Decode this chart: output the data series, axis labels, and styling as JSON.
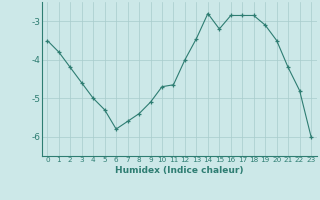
{
  "x": [
    0,
    1,
    2,
    3,
    4,
    5,
    6,
    7,
    8,
    9,
    10,
    11,
    12,
    13,
    14,
    15,
    16,
    17,
    18,
    19,
    20,
    21,
    22,
    23
  ],
  "y": [
    -3.5,
    -3.8,
    -4.2,
    -4.6,
    -5.0,
    -5.3,
    -5.8,
    -5.6,
    -5.4,
    -5.1,
    -4.7,
    -4.65,
    -4.0,
    -3.45,
    -2.8,
    -3.2,
    -2.85,
    -2.85,
    -2.85,
    -3.1,
    -3.5,
    -4.2,
    -4.8,
    -6.0
  ],
  "xlabel": "Humidex (Indice chaleur)",
  "ylim": [
    -6.5,
    -2.5
  ],
  "xlim": [
    -0.5,
    23.5
  ],
  "yticks": [
    -3,
    -4,
    -5,
    -6
  ],
  "xtick_labels": [
    "0",
    "1",
    "2",
    "3",
    "4",
    "5",
    "6",
    "7",
    "8",
    "9",
    "10",
    "11",
    "12",
    "13",
    "14",
    "15",
    "16",
    "17",
    "18",
    "19",
    "20",
    "21",
    "22",
    "23"
  ],
  "line_color": "#2e7d72",
  "marker": "+",
  "bg_color": "#cce8e8",
  "grid_color": "#a8cccc",
  "xlabel_fontsize": 6.5,
  "ytick_fontsize": 6.5,
  "xtick_fontsize": 5.2
}
